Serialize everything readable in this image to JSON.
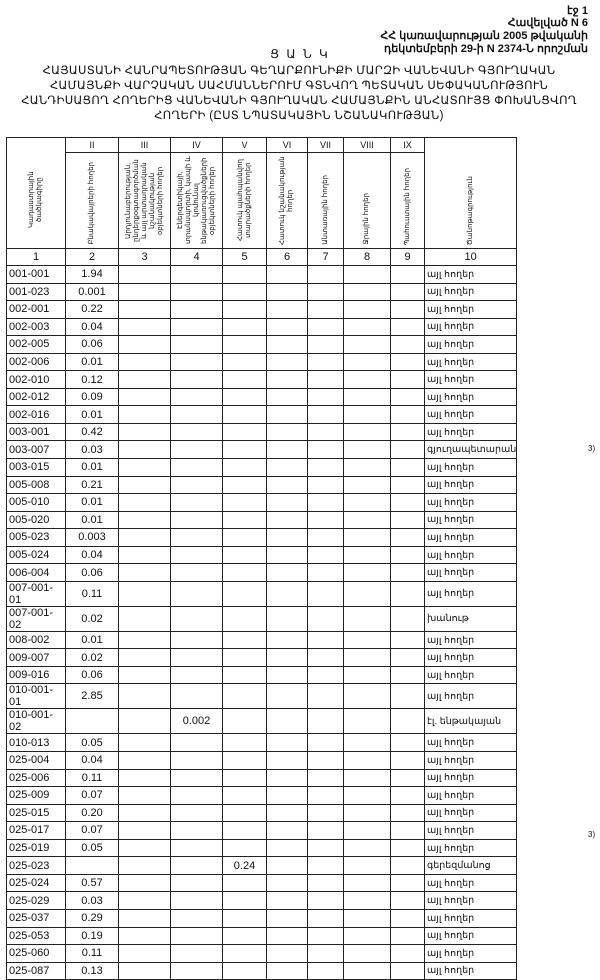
{
  "page_label": "էջ 1",
  "appendix": [
    "Հավելված N 6",
    "ՀՀ կառավարության 2005 թվականի",
    "դեկտեմբերի 29-ի N 2374-Ն որոշման"
  ],
  "title": "Ց Ա Ն Կ",
  "subtitle": "ՀԱՅԱՍՏԱՆԻ ՀԱՆՐԱՊԵՏՈՒԹՅԱՆ ԳԵՂԱՐՔՈՒՆԻՔԻ ՄԱՐԶԻ ՎԱՆԵՎԱՆԻ ԳՅՈՒՂԱԿԱՆ ՀԱՄԱՅՆՔԻ ՎԱՐՉԱԿԱՆ ՍԱՀՄԱՆՆԵՐՈՒՄ ԳՏՆՎՈՂ ՊԵՏԱԿԱՆ ՍԵՓԱԿԱՆՈՒԹՅՈՒՆ ՀԱՆԴԻՍԱՑՈՂ ՀՈՂԵՐԻՑ ՎԱՆԵՎԱՆԻ ԳՅՈՒՂԱԿԱՆ ՀԱՄԱՅՆՔԻՆ ԱՆՀԱՏՈՒՅՑ ՓՈԽԱՆՑՎՈՂ ՀՈՂԵՐԻ (ԸՍՏ ՆՊԱՏԱԿԱՅԻՆ ՆՇԱՆԱԿՈՒԹՅԱՆ)",
  "table": {
    "roman": [
      "II",
      "III",
      "IV",
      "V",
      "VI",
      "VII",
      "VIII",
      "IX"
    ],
    "headers": [
      "Կադաստրային ծածկագիրը",
      "Բնակավայրերի հողեր",
      "Արդյունաբերության, ընդերքօգտագործման և այլ արտադրական նշանակության օբյեկտների հողեր",
      "Էներգետիկայի, տրանսպորտի, կապի և կոմունալ ենթակառուցվածքների օբյեկտների հողեր",
      "Հատուկ պահպանվող տարածքների հողեր",
      "Հատուկ նշանակության հողեր",
      "Անտառային հողեր",
      "Ջրային հողեր",
      "Պահուստային հողեր",
      "Ծանոթագրություն"
    ],
    "numbers": [
      "1",
      "2",
      "3",
      "4",
      "5",
      "6",
      "7",
      "8",
      "9",
      "10"
    ],
    "rows": [
      {
        "code": "001-001",
        "c2": "1.94",
        "note": "այլ հողեր"
      },
      {
        "code": "001-023",
        "c2": "0.001",
        "note": "այլ հողեր"
      },
      {
        "code": "002-001",
        "c2": "0.22",
        "note": "այլ հողեր"
      },
      {
        "code": "002-003",
        "c2": "0.04",
        "note": "այլ հողեր"
      },
      {
        "code": "002-005",
        "c2": "0.06",
        "note": "այլ հողեր"
      },
      {
        "code": "002-006",
        "c2": "0.01",
        "note": "այլ հողեր"
      },
      {
        "code": "002-010",
        "c2": "0.12",
        "note": "այլ հողեր"
      },
      {
        "code": "002-012",
        "c2": "0.09",
        "note": "այլ հողեր"
      },
      {
        "code": "002-016",
        "c2": "0.01",
        "note": "այլ հողեր"
      },
      {
        "code": "003-001",
        "c2": "0.42",
        "note": "այլ հողեր"
      },
      {
        "code": "003-007",
        "c2": "0.03",
        "note": "գյուղապետարան",
        "side": "3)"
      },
      {
        "code": "003-015",
        "c2": "0.01",
        "note": "այլ հողեր"
      },
      {
        "code": "005-008",
        "c2": "0.21",
        "note": "այլ հողեր"
      },
      {
        "code": "005-010",
        "c2": "0.01",
        "note": "այլ հողեր"
      },
      {
        "code": "005-020",
        "c2": "0.01",
        "note": "այլ հողեր"
      },
      {
        "code": "005-023",
        "c2": "0.003",
        "note": "այլ հողեր"
      },
      {
        "code": "005-024",
        "c2": "0.04",
        "note": "այլ հողեր"
      },
      {
        "code": "006-004",
        "c2": "0.06",
        "note": "այլ հողեր"
      },
      {
        "code": "007-001-01",
        "c2": "0.11",
        "note": "այլ հողեր"
      },
      {
        "code": "007-001-02",
        "c2": "0.02",
        "note": "խանութ"
      },
      {
        "code": "008-002",
        "c2": "0.01",
        "note": "այլ հողեր"
      },
      {
        "code": "009-007",
        "c2": "0.02",
        "note": "այլ հողեր"
      },
      {
        "code": "009-016",
        "c2": "0.06",
        "note": "այլ հողեր"
      },
      {
        "code": "010-001-01",
        "c2": "2.85",
        "note": "այլ հողեր"
      },
      {
        "code": "010-001-02",
        "c4": "0.002",
        "note": "էլ. ենթակայան"
      },
      {
        "code": "010-013",
        "c2": "0.05",
        "note": "այլ հողեր"
      },
      {
        "code": "025-004",
        "c2": "0.04",
        "note": "այլ հողեր"
      },
      {
        "code": "025-006",
        "c2": "0.11",
        "note": "այլ հողեր"
      },
      {
        "code": "025-009",
        "c2": "0.07",
        "note": "այլ հողեր"
      },
      {
        "code": "025-015",
        "c2": "0.20",
        "note": "այլ հողեր"
      },
      {
        "code": "025-017",
        "c2": "0.07",
        "note": "այլ հողեր"
      },
      {
        "code": "025-019",
        "c2": "0.05",
        "note": "այլ հողեր"
      },
      {
        "code": "025-023",
        "c5": "0.24",
        "note": "գերեզմանոց",
        "side": "3)"
      },
      {
        "code": "025-024",
        "c2": "0.57",
        "note": "այլ հողեր"
      },
      {
        "code": "025-029",
        "c2": "0.03",
        "note": "այլ հողեր"
      },
      {
        "code": "025-037",
        "c2": "0.29",
        "note": "այլ հողեր"
      },
      {
        "code": "025-053",
        "c2": "0.19",
        "note": "այլ հողեր"
      },
      {
        "code": "025-060",
        "c2": "0.11",
        "note": "այլ հողեր"
      },
      {
        "code": "025-087",
        "c2": "0.13",
        "note": "այլ հողեր"
      }
    ]
  }
}
